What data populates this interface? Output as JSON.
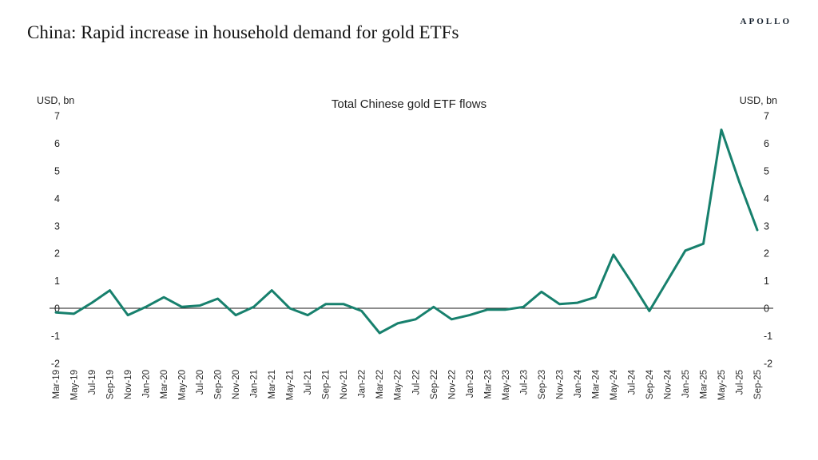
{
  "brand": {
    "logo": "APOLLO"
  },
  "page_title": "China: Rapid increase in household demand for gold ETFs",
  "chart_data": {
    "type": "line",
    "title": "Total Chinese gold ETF flows",
    "left_axis_label": "USD, bn",
    "right_axis_label": "USD, bn",
    "ylim": [
      -2,
      7
    ],
    "yticks": [
      7,
      6,
      5,
      4,
      3,
      2,
      1,
      0,
      -1,
      -2
    ],
    "grid": "none",
    "legend": "none",
    "line_color": "#17806d",
    "zero_line_color": "#1a1a1a",
    "categories": [
      "Mar-19",
      "May-19",
      "Jul-19",
      "Sep-19",
      "Nov-19",
      "Jan-20",
      "Mar-20",
      "May-20",
      "Jul-20",
      "Sep-20",
      "Nov-20",
      "Jan-21",
      "Mar-21",
      "May-21",
      "Jul-21",
      "Sep-21",
      "Nov-21",
      "Jan-22",
      "Mar-22",
      "May-22",
      "Jul-22",
      "Sep-22",
      "Nov-22",
      "Jan-23",
      "Mar-23",
      "May-23",
      "Jul-23",
      "Sep-23",
      "Nov-23",
      "Jan-24",
      "Mar-24",
      "May-24",
      "Jul-24",
      "Sep-24",
      "Nov-24",
      "Jan-25",
      "Mar-25",
      "May-25",
      "Jul-25",
      "Sep-25"
    ],
    "values": [
      -0.15,
      -0.2,
      0.2,
      0.65,
      -0.25,
      0.05,
      0.4,
      0.05,
      0.1,
      0.35,
      -0.25,
      0.05,
      0.65,
      0.0,
      -0.25,
      0.15,
      0.15,
      -0.1,
      -0.9,
      -0.55,
      -0.4,
      0.05,
      -0.4,
      -0.25,
      -0.05,
      -0.05,
      0.05,
      0.6,
      0.15,
      0.2,
      0.4,
      1.95,
      0.95,
      -0.1,
      1.0,
      2.1,
      2.35,
      6.5,
      4.6,
      2.85
    ]
  }
}
